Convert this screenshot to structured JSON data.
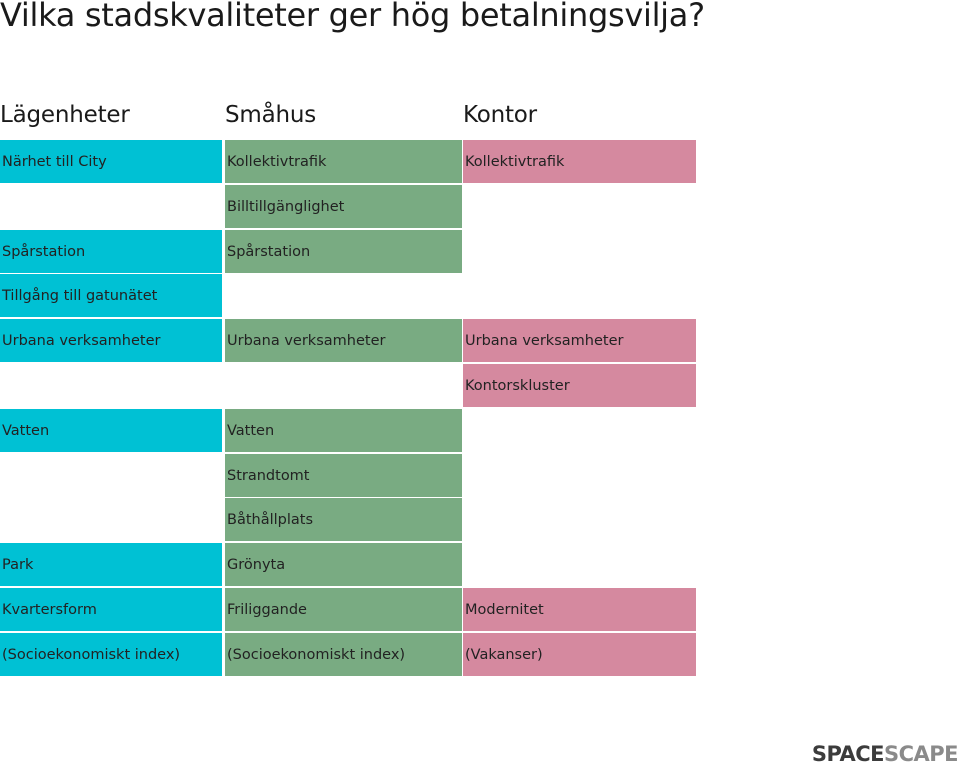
{
  "title": "Vilka stadskvaliteter ger hög betalningsvilja?",
  "colors": {
    "lagenheter": "#00c1d4",
    "smahus": "#79ab82",
    "kontor": "#d5899f",
    "logo_dark": "#3c3c3c",
    "logo_light": "#8a8a8a"
  },
  "columns": [
    {
      "key": "lagenheter",
      "header": "Lägenheter",
      "cells": [
        {
          "row": 0,
          "label": "Närhet till City"
        },
        {
          "row": 2,
          "label": "Spårstation"
        },
        {
          "row": 3,
          "label": "Tillgång till gatunätet"
        },
        {
          "row": 4,
          "label": "Urbana verksamheter"
        },
        {
          "row": 6,
          "label": "Vatten"
        },
        {
          "row": 9,
          "label": "Park"
        },
        {
          "row": 10,
          "label": "Kvartersform"
        },
        {
          "row": 11,
          "label": "(Socioekonomiskt index)"
        }
      ]
    },
    {
      "key": "smahus",
      "header": "Småhus",
      "cells": [
        {
          "row": 0,
          "label": "Kollektivtrafik"
        },
        {
          "row": 1,
          "label": "Billtillgänglighet"
        },
        {
          "row": 2,
          "label": "Spårstation"
        },
        {
          "row": 4,
          "label": "Urbana verksamheter"
        },
        {
          "row": 6,
          "label": "Vatten"
        },
        {
          "row": 7,
          "label": "Strandtomt"
        },
        {
          "row": 8,
          "label": "Båthållplats"
        },
        {
          "row": 9,
          "label": "Grönyta"
        },
        {
          "row": 10,
          "label": "Friliggande"
        },
        {
          "row": 11,
          "label": "(Socioekonomiskt index)"
        }
      ]
    },
    {
      "key": "kontor",
      "header": "Kontor",
      "cells": [
        {
          "row": 0,
          "label": "Kollektivtrafik"
        },
        {
          "row": 4,
          "label": "Urbana verksamheter"
        },
        {
          "row": 5,
          "label": "Kontorskluster"
        },
        {
          "row": 10,
          "label": "Modernitet"
        },
        {
          "row": 11,
          "label": "(Vakanser)"
        }
      ]
    }
  ],
  "logo": {
    "part1": "SPACE",
    "part2": "SCAPE"
  }
}
